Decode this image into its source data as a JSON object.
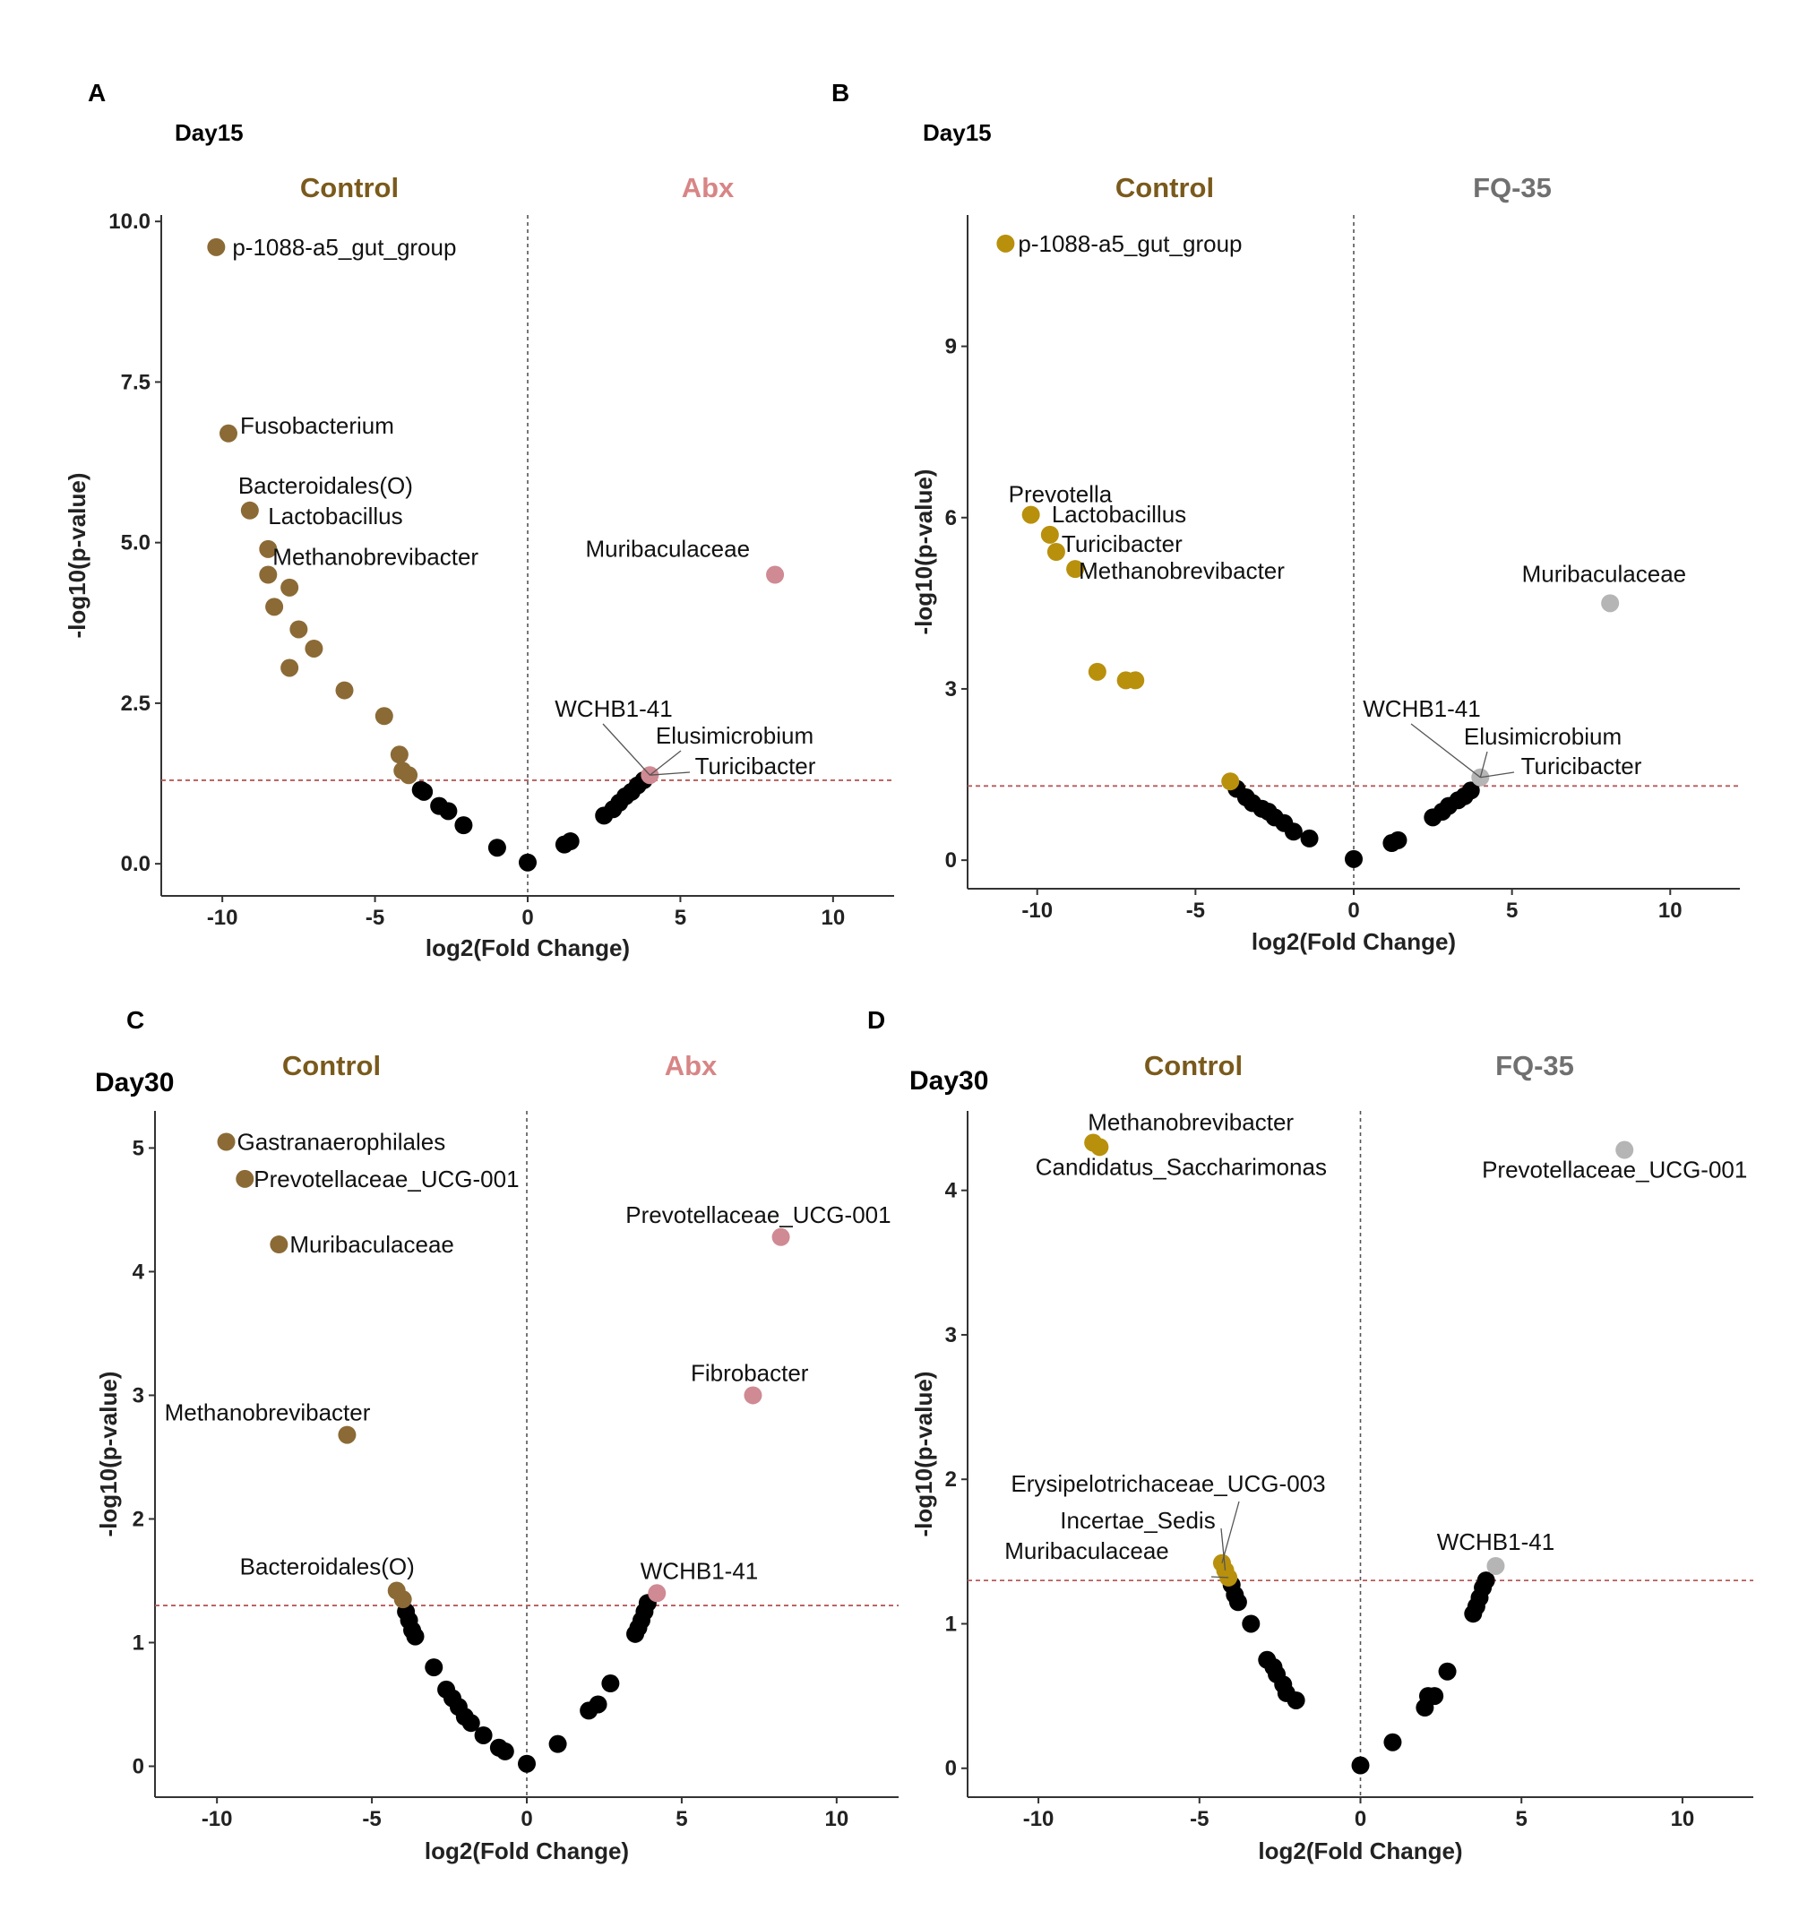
{
  "colors": {
    "control_abx": "#8b6a36",
    "control_fq": "#b8900c",
    "abx": "#cf8a93",
    "fq": "#b5b5b5",
    "nonsig": "#000000",
    "threshold": "#b85a5a",
    "abx_label": "#d88585",
    "fq_label": "#707070",
    "control_label": "#7a5a1c"
  },
  "chart_data": [
    {
      "panel": "A",
      "type": "scatter",
      "title": "Day15",
      "group_labels": {
        "left": "Control",
        "right": "Abx"
      },
      "xlabel": "log2(Fold Change)",
      "ylabel": "-log10(p-value)",
      "xlim": [
        -12,
        12
      ],
      "ylim": [
        -0.5,
        10.1
      ],
      "xticks": [
        -10,
        -5,
        0,
        5,
        10
      ],
      "xtick_labels": [
        "-10",
        "-5",
        "0",
        "5",
        "10"
      ],
      "yticks": [
        0,
        2.5,
        5,
        7.5,
        10
      ],
      "ytick_labels": [
        "0.0",
        "2.5",
        "5.0",
        "7.5",
        "10.0"
      ],
      "threshold": 1.3,
      "left_color": "#8b6a36",
      "right_color": "#cf8a93",
      "sig_left": [
        [
          -10.2,
          9.6
        ],
        [
          -9.8,
          6.7
        ],
        [
          -9.1,
          5.5
        ],
        [
          -8.5,
          4.9
        ],
        [
          -8.5,
          4.5
        ],
        [
          -7.8,
          4.3
        ],
        [
          -8.3,
          4.0
        ],
        [
          -7.5,
          3.65
        ],
        [
          -7.0,
          3.35
        ],
        [
          -7.8,
          3.05
        ],
        [
          -6.0,
          2.7
        ],
        [
          -4.7,
          2.3
        ],
        [
          -4.2,
          1.7
        ],
        [
          -4.1,
          1.45
        ],
        [
          -3.9,
          1.38
        ]
      ],
      "sig_right": [
        [
          8.1,
          4.5
        ],
        [
          4.0,
          1.38
        ]
      ],
      "nonsig": [
        [
          -3.5,
          1.15
        ],
        [
          -3.4,
          1.12
        ],
        [
          -2.9,
          0.9
        ],
        [
          -2.6,
          0.82
        ],
        [
          -2.1,
          0.6
        ],
        [
          -1.0,
          0.25
        ],
        [
          0,
          0.02
        ],
        [
          1.2,
          0.3
        ],
        [
          1.4,
          0.35
        ],
        [
          2.5,
          0.75
        ],
        [
          2.8,
          0.85
        ],
        [
          3.0,
          0.95
        ],
        [
          3.2,
          1.05
        ],
        [
          3.4,
          1.12
        ],
        [
          3.6,
          1.22
        ],
        [
          3.8,
          1.3
        ]
      ],
      "labels": [
        {
          "text": "p-1088-a5_gut_group",
          "x": -10.2,
          "y": 9.6
        },
        {
          "text": "Fusobacterium",
          "x": -9.8,
          "y": 6.7
        },
        {
          "text": "Bacteroidales(O)",
          "x": -9.1,
          "y": 5.5
        },
        {
          "text": "Lactobacillus",
          "x": -8.5,
          "y": 4.9
        },
        {
          "text": "Methanobrevibacter",
          "x": -8.5,
          "y": 4.5
        },
        {
          "text": "Muribaculaceae",
          "x": 8.1,
          "y": 4.5
        },
        {
          "text": "WCHB1-41",
          "x": 4.0,
          "y": 1.38
        },
        {
          "text": "Elusimicrobium",
          "x": 4.0,
          "y": 1.38
        },
        {
          "text": "Turicibacter",
          "x": 4.0,
          "y": 1.38
        }
      ]
    },
    {
      "panel": "B",
      "type": "scatter",
      "title": "Day15",
      "group_labels": {
        "left": "Control",
        "right": "FQ-35"
      },
      "xlabel": "log2(Fold Change)",
      "ylabel": "-log10(p-value)",
      "xlim": [
        -12.2,
        12.2
      ],
      "ylim": [
        -0.5,
        11.3
      ],
      "xticks": [
        -10,
        -5,
        0,
        5,
        10
      ],
      "xtick_labels": [
        "-10",
        "-5",
        "0",
        "5",
        "10"
      ],
      "yticks": [
        0,
        3,
        6,
        9
      ],
      "ytick_labels": [
        "0",
        "3",
        "6",
        "9"
      ],
      "threshold": 1.3,
      "left_color": "#b8900c",
      "right_color": "#b5b5b5",
      "sig_left": [
        [
          -11.0,
          10.8
        ],
        [
          -10.2,
          6.05
        ],
        [
          -9.6,
          5.7
        ],
        [
          -9.4,
          5.4
        ],
        [
          -8.8,
          5.1
        ],
        [
          -8.1,
          3.3
        ],
        [
          -7.2,
          3.15
        ],
        [
          -6.9,
          3.15
        ],
        [
          -3.9,
          1.38
        ]
      ],
      "sig_right": [
        [
          8.1,
          4.5
        ],
        [
          4.0,
          1.45
        ]
      ],
      "nonsig": [
        [
          -3.7,
          1.25
        ],
        [
          -3.4,
          1.1
        ],
        [
          -3.2,
          1.0
        ],
        [
          -2.9,
          0.9
        ],
        [
          -2.7,
          0.85
        ],
        [
          -2.5,
          0.75
        ],
        [
          -2.2,
          0.65
        ],
        [
          -1.9,
          0.5
        ],
        [
          -1.4,
          0.38
        ],
        [
          0,
          0.02
        ],
        [
          1.2,
          0.3
        ],
        [
          1.4,
          0.35
        ],
        [
          2.5,
          0.75
        ],
        [
          2.8,
          0.85
        ],
        [
          3.0,
          0.95
        ],
        [
          3.3,
          1.05
        ],
        [
          3.5,
          1.12
        ],
        [
          3.7,
          1.22
        ]
      ],
      "labels": [
        {
          "text": "p-1088-a5_gut_group",
          "x": -11.0,
          "y": 10.8
        },
        {
          "text": "Prevotella",
          "x": -10.2,
          "y": 6.05
        },
        {
          "text": "Lactobacillus",
          "x": -9.6,
          "y": 5.7
        },
        {
          "text": "Turicibacter",
          "x": -9.4,
          "y": 5.4
        },
        {
          "text": "Methanobrevibacter",
          "x": -8.8,
          "y": 5.1
        },
        {
          "text": "Muribaculaceae",
          "x": 8.1,
          "y": 4.5
        },
        {
          "text": "WCHB1-41",
          "x": 4.0,
          "y": 1.45
        },
        {
          "text": "Elusimicrobium",
          "x": 4.0,
          "y": 1.45
        },
        {
          "text": "Turicibacter",
          "x": 4.0,
          "y": 1.45
        }
      ]
    },
    {
      "panel": "C",
      "type": "scatter",
      "title": "Day30",
      "group_labels": {
        "left": "Control",
        "right": "Abx"
      },
      "xlabel": "log2(Fold Change)",
      "ylabel": "-log10(p-value)",
      "xlim": [
        -12,
        12
      ],
      "ylim": [
        -0.25,
        5.3
      ],
      "xticks": [
        -10,
        -5,
        0,
        5,
        10
      ],
      "xtick_labels": [
        "-10",
        "-5",
        "0",
        "5",
        "10"
      ],
      "yticks": [
        0,
        1,
        2,
        3,
        4,
        5
      ],
      "ytick_labels": [
        "0",
        "1",
        "2",
        "3",
        "4",
        "5"
      ],
      "threshold": 1.3,
      "left_color": "#8b6a36",
      "right_color": "#cf8a93",
      "sig_left": [
        [
          -9.7,
          5.05
        ],
        [
          -9.1,
          4.75
        ],
        [
          -8.0,
          4.22
        ],
        [
          -5.8,
          2.68
        ],
        [
          -4.2,
          1.42
        ],
        [
          -4.0,
          1.35
        ]
      ],
      "sig_right": [
        [
          8.2,
          4.28
        ],
        [
          7.3,
          3.0
        ],
        [
          4.2,
          1.4
        ]
      ],
      "nonsig": [
        [
          -3.9,
          1.25
        ],
        [
          -3.8,
          1.18
        ],
        [
          -3.7,
          1.1
        ],
        [
          -3.6,
          1.05
        ],
        [
          -3.0,
          0.8
        ],
        [
          -2.6,
          0.62
        ],
        [
          -2.4,
          0.55
        ],
        [
          -2.2,
          0.48
        ],
        [
          -2.0,
          0.4
        ],
        [
          -1.8,
          0.35
        ],
        [
          -1.4,
          0.25
        ],
        [
          -0.9,
          0.15
        ],
        [
          -0.7,
          0.12
        ],
        [
          0,
          0.02
        ],
        [
          1.0,
          0.18
        ],
        [
          2.0,
          0.45
        ],
        [
          2.3,
          0.5
        ],
        [
          2.7,
          0.67
        ],
        [
          3.5,
          1.07
        ],
        [
          3.6,
          1.12
        ],
        [
          3.7,
          1.18
        ],
        [
          3.8,
          1.25
        ],
        [
          3.9,
          1.32
        ]
      ],
      "labels": [
        {
          "text": "Gastranaerophilales",
          "x": -9.7,
          "y": 5.05
        },
        {
          "text": "Prevotellaceae_UCG-001",
          "x": -9.1,
          "y": 4.75
        },
        {
          "text": "Muribaculaceae",
          "x": -8.0,
          "y": 4.22
        },
        {
          "text": "Methanobrevibacter",
          "x": -5.8,
          "y": 2.68
        },
        {
          "text": "Bacteroidales(O)",
          "x": -4.2,
          "y": 1.42
        },
        {
          "text": "Prevotellaceae_UCG-001",
          "x": 8.2,
          "y": 4.28
        },
        {
          "text": "Fibrobacter",
          "x": 7.3,
          "y": 3.0
        },
        {
          "text": "WCHB1-41",
          "x": 4.2,
          "y": 1.4
        }
      ]
    },
    {
      "panel": "D",
      "type": "scatter",
      "title": "Day30",
      "group_labels": {
        "left": "Control",
        "right": "FQ-35"
      },
      "xlabel": "log2(Fold Change)",
      "ylabel": "-log10(p-value)",
      "xlim": [
        -12.2,
        12.2
      ],
      "ylim": [
        -0.2,
        4.55
      ],
      "xticks": [
        -10,
        -5,
        0,
        5,
        10
      ],
      "xtick_labels": [
        "-10",
        "-5",
        "0",
        "5",
        "10"
      ],
      "yticks": [
        0,
        1,
        2,
        3,
        4
      ],
      "ytick_labels": [
        "0",
        "1",
        "2",
        "3",
        "4"
      ],
      "threshold": 1.3,
      "left_color": "#b8900c",
      "right_color": "#b5b5b5",
      "sig_left": [
        [
          -8.3,
          4.33
        ],
        [
          -8.1,
          4.3
        ],
        [
          -4.3,
          1.42
        ],
        [
          -4.2,
          1.37
        ],
        [
          -4.1,
          1.32
        ]
      ],
      "sig_right": [
        [
          8.2,
          4.28
        ],
        [
          4.2,
          1.4
        ]
      ],
      "nonsig": [
        [
          -4.0,
          1.27
        ],
        [
          -3.9,
          1.2
        ],
        [
          -3.8,
          1.15
        ],
        [
          -3.4,
          1.0
        ],
        [
          -2.9,
          0.75
        ],
        [
          -2.7,
          0.7
        ],
        [
          -2.6,
          0.65
        ],
        [
          -2.4,
          0.58
        ],
        [
          -2.3,
          0.52
        ],
        [
          -2.0,
          0.47
        ],
        [
          0,
          0.02
        ],
        [
          1.0,
          0.18
        ],
        [
          2.0,
          0.42
        ],
        [
          2.1,
          0.5
        ],
        [
          2.3,
          0.5
        ],
        [
          2.7,
          0.67
        ],
        [
          3.5,
          1.07
        ],
        [
          3.6,
          1.12
        ],
        [
          3.7,
          1.18
        ],
        [
          3.8,
          1.25
        ],
        [
          3.9,
          1.3
        ]
      ],
      "labels": [
        {
          "text": "Methanobrevibacter",
          "x": -8.3,
          "y": 4.33
        },
        {
          "text": "Candidatus_Saccharimonas",
          "x": -8.1,
          "y": 4.3
        },
        {
          "text": "Prevotellaceae_UCG-001",
          "x": 8.2,
          "y": 4.28
        },
        {
          "text": "Erysipelotrichaceae_UCG-003",
          "x": -4.3,
          "y": 1.42
        },
        {
          "text": "Incertae_Sedis",
          "x": -4.2,
          "y": 1.37
        },
        {
          "text": "Muribaculaceae",
          "x": -4.1,
          "y": 1.32
        },
        {
          "text": "WCHB1-41",
          "x": 4.2,
          "y": 1.4
        }
      ]
    }
  ]
}
